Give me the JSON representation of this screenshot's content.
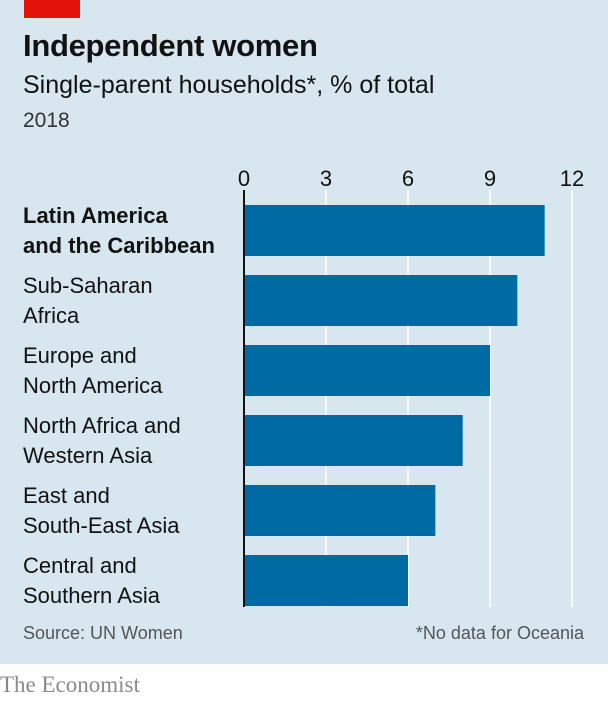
{
  "header": {
    "title": "Independent women",
    "subtitle": "Single-parent households*, % of total",
    "year": "2018"
  },
  "footer": {
    "source": "Source: UN Women",
    "note": "*No data for Oceania",
    "brand": "The Economist"
  },
  "colors": {
    "background": "#d7e6ef",
    "bar": "#006ba2",
    "accent": "#e3120b",
    "grid": "#ffffff"
  },
  "chart_data": {
    "type": "bar",
    "orientation": "horizontal",
    "categories": [
      "Latin America and the Caribbean",
      "Sub-Saharan Africa",
      "Europe and North America",
      "North Africa and Western Asia",
      "East and South-East Asia",
      "Central and Southern Asia"
    ],
    "category_lines": [
      [
        "Latin America",
        "and the Caribbean"
      ],
      [
        "Sub-Saharan",
        "Africa"
      ],
      [
        "Europe and",
        "North America"
      ],
      [
        "North Africa and",
        "Western Asia"
      ],
      [
        "East and",
        "South-East Asia"
      ],
      [
        "Central and",
        "Southern Asia"
      ]
    ],
    "highlighted_category": "Latin America and the Caribbean",
    "values": [
      11,
      10,
      9,
      8,
      7,
      6
    ],
    "xlim": [
      0,
      12
    ],
    "xticks": [
      "0",
      "3",
      "6",
      "9",
      "12"
    ],
    "grid": true,
    "xlabel": "",
    "ylabel": ""
  }
}
